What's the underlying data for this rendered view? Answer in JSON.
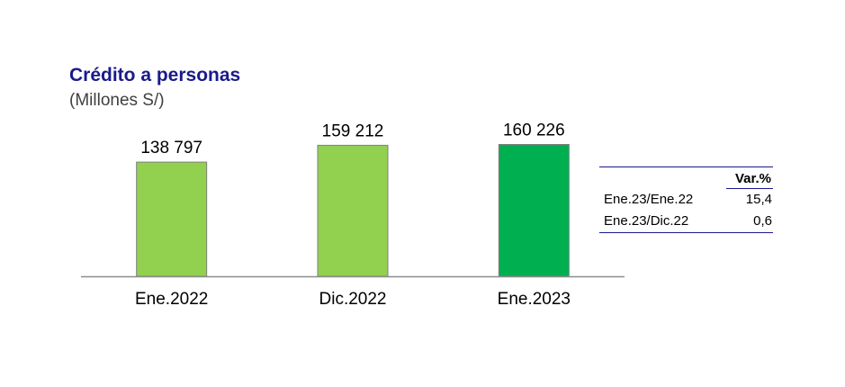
{
  "chart_data": {
    "type": "bar",
    "title": "Crédito a personas",
    "subtitle": "(Millones S/)",
    "categories": [
      "Ene.2022",
      "Dic.2022",
      "Ene.2023"
    ],
    "values": [
      138797,
      159212,
      160226
    ],
    "value_labels": [
      "138 797",
      "159 212",
      "160 226"
    ],
    "colors": [
      "#92d050",
      "#92d050",
      "#00b050"
    ],
    "ylim": [
      0,
      175000
    ],
    "grid": false,
    "legend": "none"
  },
  "variation_table": {
    "header": "Var.%",
    "rows": [
      {
        "label": "Ene.23/Ene.22",
        "value": "15,4"
      },
      {
        "label": "Ene.23/Dic.22",
        "value": "0,6"
      }
    ]
  }
}
